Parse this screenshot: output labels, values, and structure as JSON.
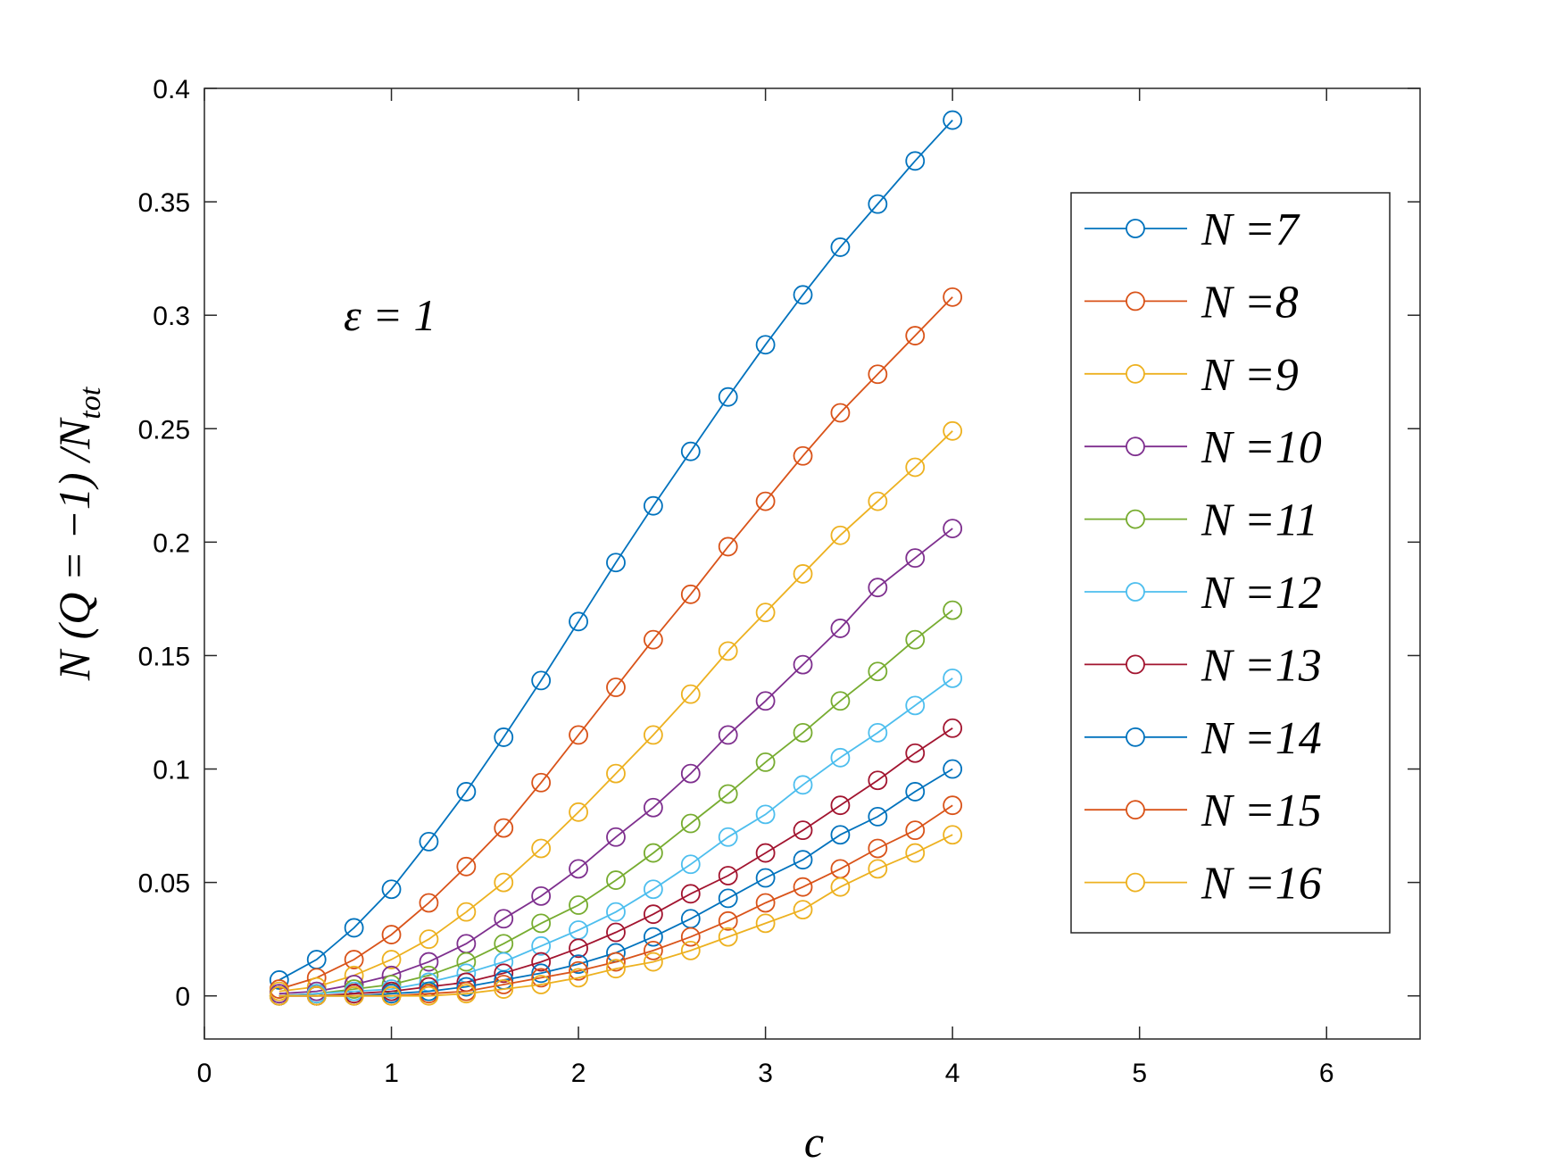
{
  "chart_data": {
    "type": "line",
    "xlabel": "c",
    "ylabel": {
      "main": "N (Q = −1) /N",
      "subscript": "tot"
    },
    "annotation": "ε = 1",
    "xlim": [
      0,
      6.5
    ],
    "ylim": [
      -0.019,
      0.4
    ],
    "xticks": [
      0,
      1,
      2,
      3,
      4,
      5,
      6
    ],
    "xtick_labels": [
      "0",
      "1",
      "2",
      "3",
      "4",
      "5",
      "6"
    ],
    "yticks": [
      0,
      0.05,
      0.1,
      0.15,
      0.2,
      0.25,
      0.3,
      0.35,
      0.4
    ],
    "ytick_labels": [
      "0",
      "0.05",
      "0.1",
      "0.15",
      "0.2",
      "0.25",
      "0.3",
      "0.35",
      "0.4"
    ],
    "grid": false,
    "legend_position": "right",
    "marker": "circle",
    "x": [
      0.4,
      0.6,
      0.8,
      1.0,
      1.2,
      1.4,
      1.6,
      1.8,
      2.0,
      2.2,
      2.4,
      2.6,
      2.8,
      3.0,
      3.2,
      3.4,
      3.6,
      3.8,
      4.0
    ],
    "series": [
      {
        "name": "N =7",
        "color": "#0072BD",
        "values": [
          0.007,
          0.016,
          0.03,
          0.047,
          0.068,
          0.09,
          0.114,
          0.139,
          0.165,
          0.191,
          0.216,
          0.24,
          0.264,
          0.287,
          0.309,
          0.33,
          0.349,
          0.368,
          0.386
        ]
      },
      {
        "name": "N =8",
        "color": "#D95319",
        "values": [
          0.003,
          0.008,
          0.016,
          0.027,
          0.041,
          0.057,
          0.074,
          0.094,
          0.115,
          0.136,
          0.157,
          0.177,
          0.198,
          0.218,
          0.238,
          0.257,
          0.274,
          0.291,
          0.308
        ]
      },
      {
        "name": "N =9",
        "color": "#EDB120",
        "values": [
          0.002,
          0.004,
          0.009,
          0.016,
          0.025,
          0.037,
          0.05,
          0.065,
          0.081,
          0.098,
          0.115,
          0.133,
          0.152,
          0.169,
          0.186,
          0.203,
          0.218,
          0.233,
          0.249
        ]
      },
      {
        "name": "N =10",
        "color": "#7E2F8E",
        "values": [
          0.001,
          0.002,
          0.005,
          0.009,
          0.015,
          0.023,
          0.034,
          0.044,
          0.056,
          0.07,
          0.083,
          0.098,
          0.115,
          0.13,
          0.146,
          0.162,
          0.18,
          0.193,
          0.206
        ]
      },
      {
        "name": "N =11",
        "color": "#77AC30",
        "values": [
          0.0,
          0.001,
          0.003,
          0.005,
          0.009,
          0.015,
          0.023,
          0.032,
          0.04,
          0.051,
          0.063,
          0.076,
          0.089,
          0.103,
          0.116,
          0.13,
          0.143,
          0.157,
          0.17
        ]
      },
      {
        "name": "N =12",
        "color": "#4DBEEE",
        "values": [
          0.0,
          0.001,
          0.002,
          0.003,
          0.006,
          0.01,
          0.015,
          0.022,
          0.029,
          0.037,
          0.047,
          0.058,
          0.07,
          0.08,
          0.093,
          0.105,
          0.116,
          0.128,
          0.14
        ]
      },
      {
        "name": "N =13",
        "color": "#A2142F",
        "values": [
          0.0,
          0.0,
          0.001,
          0.002,
          0.004,
          0.006,
          0.01,
          0.015,
          0.021,
          0.028,
          0.036,
          0.045,
          0.053,
          0.063,
          0.073,
          0.084,
          0.095,
          0.107,
          0.118
        ]
      },
      {
        "name": "N =14",
        "color": "#0072BD",
        "values": [
          0.0,
          0.0,
          0.0,
          0.001,
          0.002,
          0.004,
          0.007,
          0.01,
          0.014,
          0.019,
          0.026,
          0.034,
          0.043,
          0.052,
          0.06,
          0.071,
          0.079,
          0.09,
          0.1
        ]
      },
      {
        "name": "N =15",
        "color": "#D95319",
        "values": [
          0.0,
          0.0,
          0.0,
          0.0,
          0.001,
          0.002,
          0.005,
          0.008,
          0.011,
          0.015,
          0.02,
          0.026,
          0.033,
          0.041,
          0.048,
          0.056,
          0.065,
          0.073,
          0.084
        ]
      },
      {
        "name": "N =16",
        "color": "#EDB120",
        "values": [
          0.0,
          0.0,
          0.0,
          0.0,
          0.0,
          0.001,
          0.003,
          0.005,
          0.008,
          0.012,
          0.015,
          0.02,
          0.026,
          0.032,
          0.038,
          0.048,
          0.056,
          0.063,
          0.071
        ]
      }
    ]
  }
}
